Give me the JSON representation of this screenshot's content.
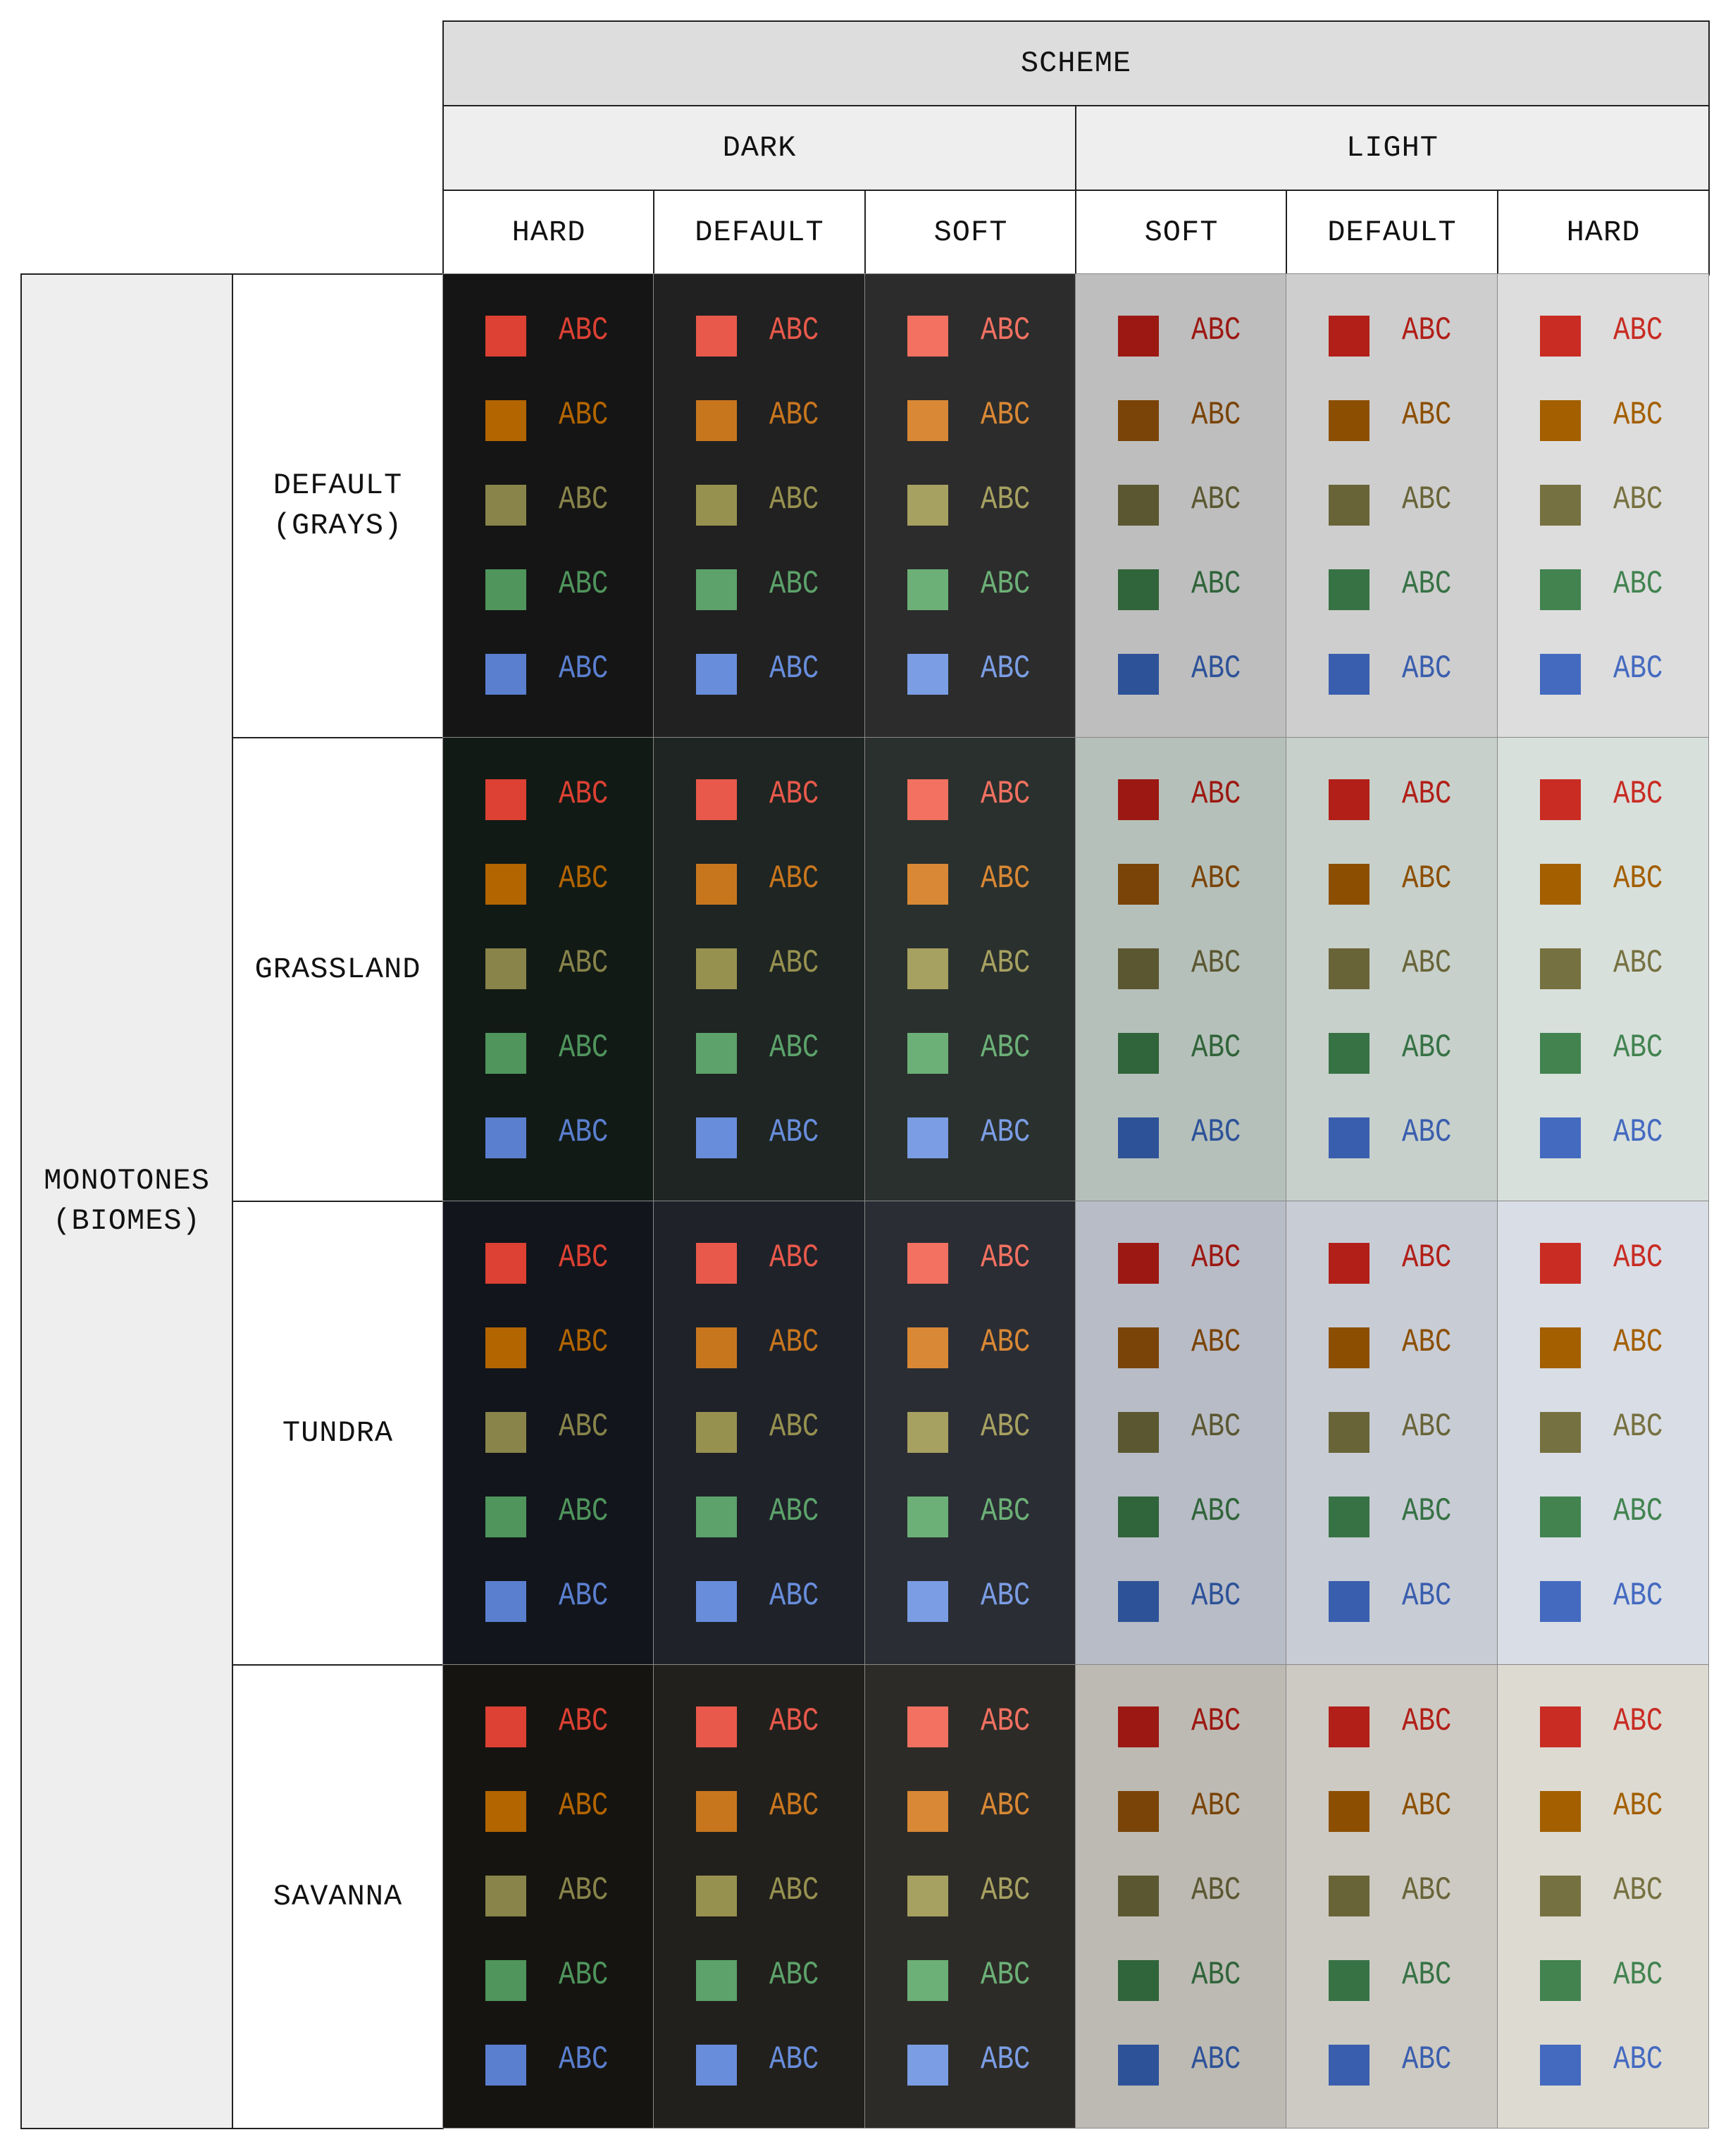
{
  "header": {
    "scheme": "SCHEME",
    "dark": "DARK",
    "light": "LIGHT",
    "columns": [
      "HARD",
      "DEFAULT",
      "SOFT",
      "SOFT",
      "DEFAULT",
      "HARD"
    ]
  },
  "group_label": "MONOTONES\n(BIOMES)",
  "sample_text": "ABC",
  "biomes": [
    {
      "label": "DEFAULT\n(GRAYS)",
      "backgrounds": [
        "#151515",
        "#212121",
        "#2c2c2c",
        "#bebebe",
        "#cecece",
        "#dddddd"
      ]
    },
    {
      "label": "GRASSLAND",
      "backgrounds": [
        "#121a16",
        "#1e2522",
        "#2a302d",
        "#b6c0ba",
        "#c7d0cb",
        "#d8e0dc"
      ]
    },
    {
      "label": "TUNDRA",
      "backgrounds": [
        "#12151c",
        "#1f2229",
        "#2a2d34",
        "#b8bcc6",
        "#c8ccd5",
        "#d9dde5"
      ]
    },
    {
      "label": "SAVANNA",
      "backgrounds": [
        "#161411",
        "#22201c",
        "#2d2b27",
        "#bdbab3",
        "#cdcac3",
        "#dddad2"
      ]
    }
  ],
  "swatch_colors": [
    [
      "#dc4133",
      "#b36500",
      "#88844a",
      "#4f955c",
      "#5a7fcf"
    ],
    [
      "#e8594b",
      "#c8761e",
      "#979150",
      "#5ca26a",
      "#688ddb"
    ],
    [
      "#f27161",
      "#d98835",
      "#a7a161",
      "#6cb077",
      "#7b9de4"
    ],
    [
      "#9c1812",
      "#7a4408",
      "#5b5731",
      "#30643a",
      "#2d5298"
    ],
    [
      "#b11f18",
      "#8c4f02",
      "#696438",
      "#377245",
      "#3a5eae"
    ],
    [
      "#c82c23",
      "#a35f00",
      "#767140",
      "#428350",
      "#446ac0"
    ]
  ]
}
